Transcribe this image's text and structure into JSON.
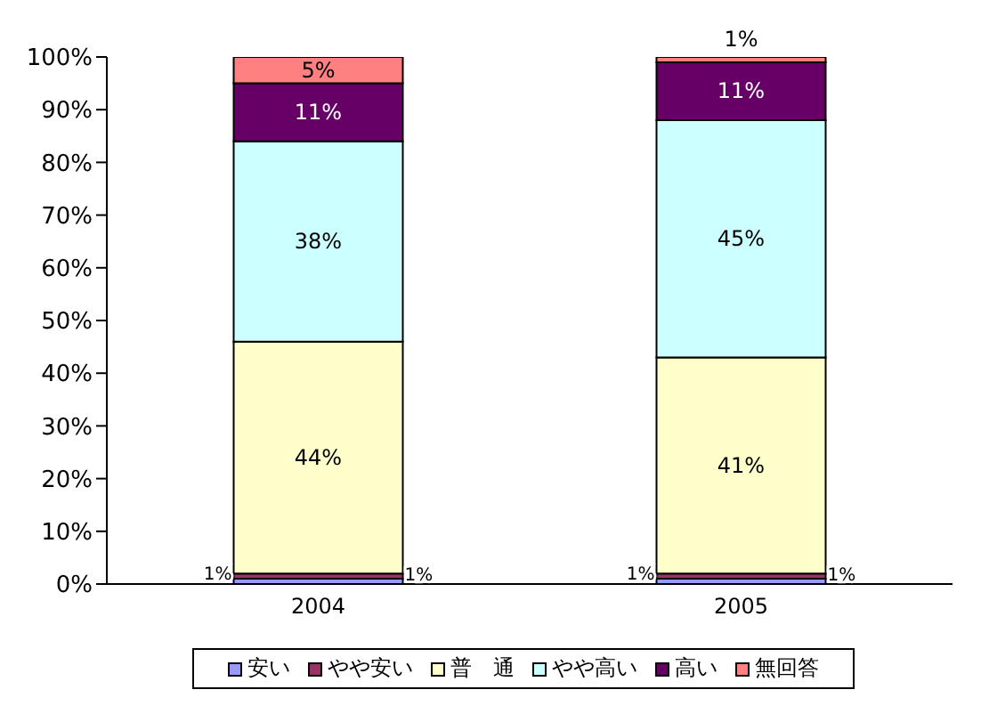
{
  "chart_data": {
    "type": "bar",
    "stacked": true,
    "categories": [
      "2004",
      "2005"
    ],
    "series": [
      {
        "name": "安い",
        "color": "#9999ff",
        "values": [
          1,
          1
        ],
        "value_labels": [
          "1%",
          "1%"
        ]
      },
      {
        "name": "やや安い",
        "color": "#993366",
        "values": [
          1,
          1
        ],
        "value_labels": [
          "1%",
          "1%"
        ]
      },
      {
        "name": "普　通",
        "color": "#ffffcc",
        "values": [
          44,
          41
        ],
        "value_labels": [
          "44%",
          "41%"
        ]
      },
      {
        "name": "やや高い",
        "color": "#ccffff",
        "values": [
          38,
          45
        ],
        "value_labels": [
          "38%",
          "45%"
        ]
      },
      {
        "name": "高い",
        "color": "#660066",
        "values": [
          11,
          11
        ],
        "value_labels": [
          "11%",
          "11%"
        ]
      },
      {
        "name": "無回答",
        "color": "#ff8080",
        "values": [
          5,
          1
        ],
        "value_labels": [
          "5%",
          "1%"
        ]
      }
    ],
    "ylim": [
      0,
      100
    ],
    "yticks": [
      {
        "value": 0,
        "label": "0%"
      },
      {
        "value": 10,
        "label": "10%"
      },
      {
        "value": 20,
        "label": "20%"
      },
      {
        "value": 30,
        "label": "30%"
      },
      {
        "value": 40,
        "label": "40%"
      },
      {
        "value": 50,
        "label": "50%"
      },
      {
        "value": 60,
        "label": "60%"
      },
      {
        "value": 70,
        "label": "70%"
      },
      {
        "value": 80,
        "label": "80%"
      },
      {
        "value": 90,
        "label": "90%"
      },
      {
        "value": 100,
        "label": "100%"
      }
    ],
    "grid": false,
    "legend": "bottom"
  }
}
